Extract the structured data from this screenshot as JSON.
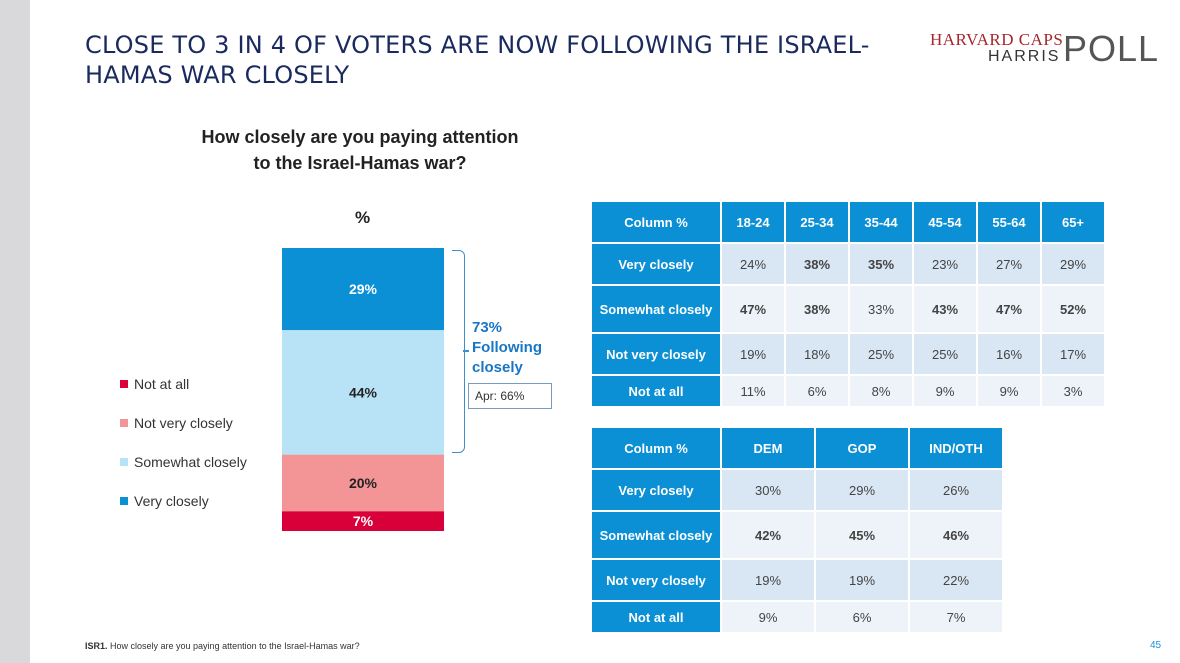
{
  "slide": {
    "title": "CLOSE TO 3 IN 4 OF VOTERS ARE NOW FOLLOWING THE ISRAEL-HAMAS WAR CLOSELY",
    "footnote_bold": "ISR1.",
    "footnote_text": " How closely are you paying attention to the Israel-Hamas war?",
    "page_number": "45"
  },
  "logo": {
    "line1": "HARVARD CAPS",
    "line2": "HARRIS",
    "word": "POLL"
  },
  "chart_data": {
    "type": "bar",
    "stacked": true,
    "title": "How closely are you paying attention to the Israel-Hamas war?",
    "title_line1": "How closely are you paying attention",
    "title_line2": "to the Israel-Hamas war?",
    "unit_label": "%",
    "categories": [
      ""
    ],
    "series": [
      {
        "name": "Not at all",
        "values": [
          7
        ],
        "label": "7%",
        "color": "#d9003a"
      },
      {
        "name": "Not very closely",
        "values": [
          20
        ],
        "label": "20%",
        "color": "#f39496"
      },
      {
        "name": "Somewhat closely",
        "values": [
          44
        ],
        "label": "44%",
        "color": "#b8e3f7"
      },
      {
        "name": "Very closely",
        "values": [
          29
        ],
        "label": "29%",
        "color": "#0b8fd5"
      }
    ],
    "legend_position": "left",
    "annotation": {
      "pct": "73%",
      "line1": "Following",
      "line2": "closely",
      "comparison": "Apr: 66%"
    }
  },
  "age_table": {
    "header": [
      "Column %",
      "18-24",
      "25-34",
      "35-44",
      "45-54",
      "55-64",
      "65+"
    ],
    "rows": [
      {
        "label": "Very closely",
        "values": [
          "24%",
          "38%",
          "35%",
          "23%",
          "27%",
          "29%"
        ],
        "bold": [
          false,
          true,
          true,
          false,
          false,
          false
        ]
      },
      {
        "label": "Somewhat closely",
        "values": [
          "47%",
          "38%",
          "33%",
          "43%",
          "47%",
          "52%"
        ],
        "bold": [
          true,
          true,
          false,
          true,
          true,
          true
        ]
      },
      {
        "label": "Not very closely",
        "values": [
          "19%",
          "18%",
          "25%",
          "25%",
          "16%",
          "17%"
        ],
        "bold": [
          false,
          false,
          false,
          false,
          false,
          false
        ]
      },
      {
        "label": "Not at all",
        "values": [
          "11%",
          "6%",
          "8%",
          "9%",
          "9%",
          "3%"
        ],
        "bold": [
          false,
          false,
          false,
          false,
          false,
          false
        ]
      }
    ]
  },
  "party_table": {
    "header": [
      "Column %",
      "DEM",
      "GOP",
      "IND/OTH"
    ],
    "rows": [
      {
        "label": "Very closely",
        "values": [
          "30%",
          "29%",
          "26%"
        ],
        "bold": [
          false,
          false,
          false
        ]
      },
      {
        "label": "Somewhat closely",
        "values": [
          "42%",
          "45%",
          "46%"
        ],
        "bold": [
          true,
          true,
          true
        ]
      },
      {
        "label": "Not very closely",
        "values": [
          "19%",
          "19%",
          "22%"
        ],
        "bold": [
          false,
          false,
          false
        ]
      },
      {
        "label": "Not at all",
        "values": [
          "9%",
          "6%",
          "7%"
        ],
        "bold": [
          false,
          false,
          false
        ]
      }
    ]
  }
}
